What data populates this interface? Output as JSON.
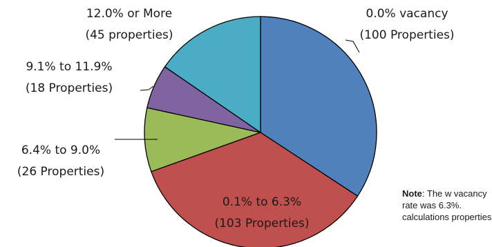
{
  "chart_data": {
    "type": "pie",
    "categories": [
      "0.0% vacancy",
      "0.1% to 6.3%",
      "6.4% to 9.0%",
      "9.1% to 11.9%",
      "12.0% or More"
    ],
    "values": [
      100,
      103,
      26,
      18,
      45
    ],
    "labels": [
      [
        "0.0% vacancy",
        "(100 Properties)"
      ],
      [
        "0.1% to 6.3%",
        "(103 Properties)"
      ],
      [
        "6.4% to 9.0%",
        "(26 Properties)"
      ],
      [
        "9.1% to 11.9%",
        "(18 Properties)"
      ],
      [
        "12.0% or More",
        "(45 properties)"
      ]
    ],
    "colors": [
      "#4f81bd",
      "#c0504d",
      "#9bbb59",
      "#8064a2",
      "#4bacc6"
    ]
  },
  "note": {
    "bold": "Note",
    "text": ": The w vacancy rate was 6.3%. calculations properties"
  }
}
